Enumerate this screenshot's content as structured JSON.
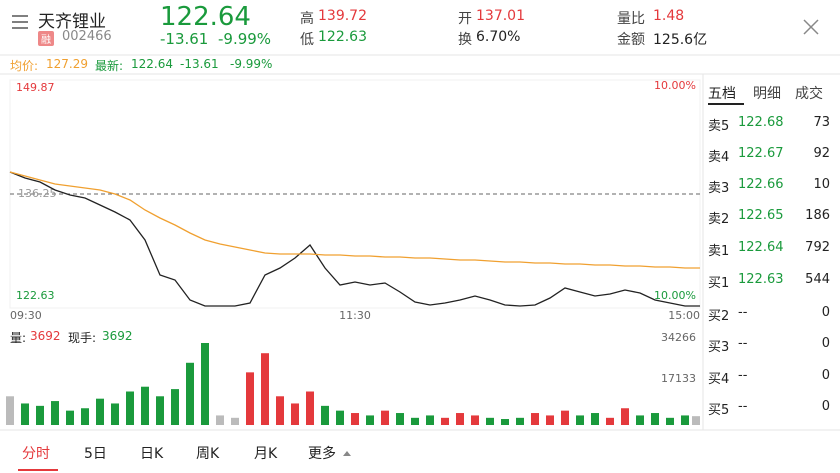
{
  "header": {
    "name": "天齐锂业",
    "badge": "融",
    "code": "002466",
    "price": "122.64",
    "change": "-13.61",
    "change_pct": "-9.99%",
    "stats": [
      {
        "label": "高",
        "value": "139.72",
        "color": "#e4393c"
      },
      {
        "label": "低",
        "value": "122.63",
        "color": "#1a9a3c"
      },
      {
        "label": "开",
        "value": "137.01",
        "color": "#e4393c"
      },
      {
        "label": "换",
        "value": "6.70%",
        "color": "#222222"
      },
      {
        "label": "量比",
        "value": "1.48",
        "color": "#e4393c"
      },
      {
        "label": "金额",
        "value": "125.6亿",
        "color": "#222222"
      }
    ]
  },
  "info_bar": {
    "avg_label": "均价:",
    "avg": "127.29",
    "last_label": "最新:",
    "last": "122.64",
    "change": "-13.61",
    "change_pct": "-9.99%"
  },
  "price_chart": {
    "type": "line",
    "ylim": [
      122.63,
      149.87
    ],
    "yticks": [
      122.63,
      149.87
    ],
    "prev_close": {
      "value": 136.25,
      "label": "136.25"
    },
    "pct_labels": [
      "10.00%",
      "10.00%"
    ],
    "x_labels": [
      "09:30",
      "11:30",
      "15:00"
    ],
    "series": [
      {
        "color": "#222222",
        "values": [
          138.88,
          138.16,
          137.68,
          136.73,
          136.13,
          135.77,
          134.94,
          134.1,
          133.14,
          130.75,
          126.57,
          125.97,
          123.58,
          122.87,
          122.87,
          122.87,
          123.23,
          126.57,
          127.41,
          128.6,
          130.16,
          127.41,
          125.38,
          125.74,
          125.38,
          125.62,
          124.54,
          123.35,
          122.99,
          123.23,
          123.59,
          124.06,
          123.59,
          122.99,
          122.87,
          122.99,
          123.83,
          125.02,
          124.54,
          124.06,
          124.3,
          124.78,
          124.42,
          123.59,
          123.23,
          122.87,
          122.87
        ]
      },
      {
        "color": "#f0a030",
        "values": [
          138.88,
          138.4,
          137.92,
          137.44,
          137.21,
          136.97,
          136.73,
          136.25,
          135.53,
          134.34,
          133.38,
          132.55,
          131.59,
          130.75,
          130.28,
          129.92,
          129.56,
          129.2,
          129.08,
          129.08,
          129.08,
          128.96,
          128.96,
          128.84,
          128.84,
          128.72,
          128.72,
          128.6,
          128.6,
          128.48,
          128.36,
          128.36,
          128.25,
          128.13,
          128.13,
          128.01,
          128.01,
          127.89,
          127.89,
          127.77,
          127.77,
          127.65,
          127.65,
          127.53,
          127.53,
          127.41,
          127.41
        ]
      }
    ]
  },
  "volume_chart": {
    "type": "bar",
    "label": "量:",
    "value": "3692",
    "hand_label": "现手:",
    "hand_value": "3692",
    "ylim": [
      0,
      34266
    ],
    "yticks": [
      34266,
      17133
    ],
    "values": [
      12000,
      9000,
      8000,
      10000,
      6000,
      7000,
      11000,
      9000,
      14000,
      16000,
      12000,
      15000,
      26000,
      34266,
      4000,
      3000,
      22000,
      30000,
      12000,
      9000,
      14000,
      8000,
      6000,
      5000,
      4000,
      6000,
      5000,
      3000,
      4000,
      3000,
      5000,
      4000,
      3000,
      2500,
      3000,
      5000,
      4000,
      6000,
      4000,
      5000,
      3000,
      7000,
      4000,
      5000,
      3000,
      4000,
      3692
    ]
  },
  "order_book": {
    "tabs": [
      "五档",
      "明细",
      "成交"
    ],
    "rows": [
      [
        "卖5",
        "122.68",
        "73"
      ],
      [
        "卖4",
        "122.67",
        "92"
      ],
      [
        "卖3",
        "122.66",
        "10"
      ],
      [
        "卖2",
        "122.65",
        "186"
      ],
      [
        "卖1",
        "122.64",
        "792"
      ],
      [
        "买1",
        "122.63",
        "544"
      ],
      [
        "买2",
        "--",
        "0"
      ],
      [
        "买3",
        "--",
        "0"
      ],
      [
        "买4",
        "--",
        "0"
      ],
      [
        "买5",
        "--",
        "0"
      ]
    ]
  },
  "bottom_tabs": [
    "分时",
    "5日",
    "日K",
    "周K",
    "月K",
    "更多"
  ]
}
